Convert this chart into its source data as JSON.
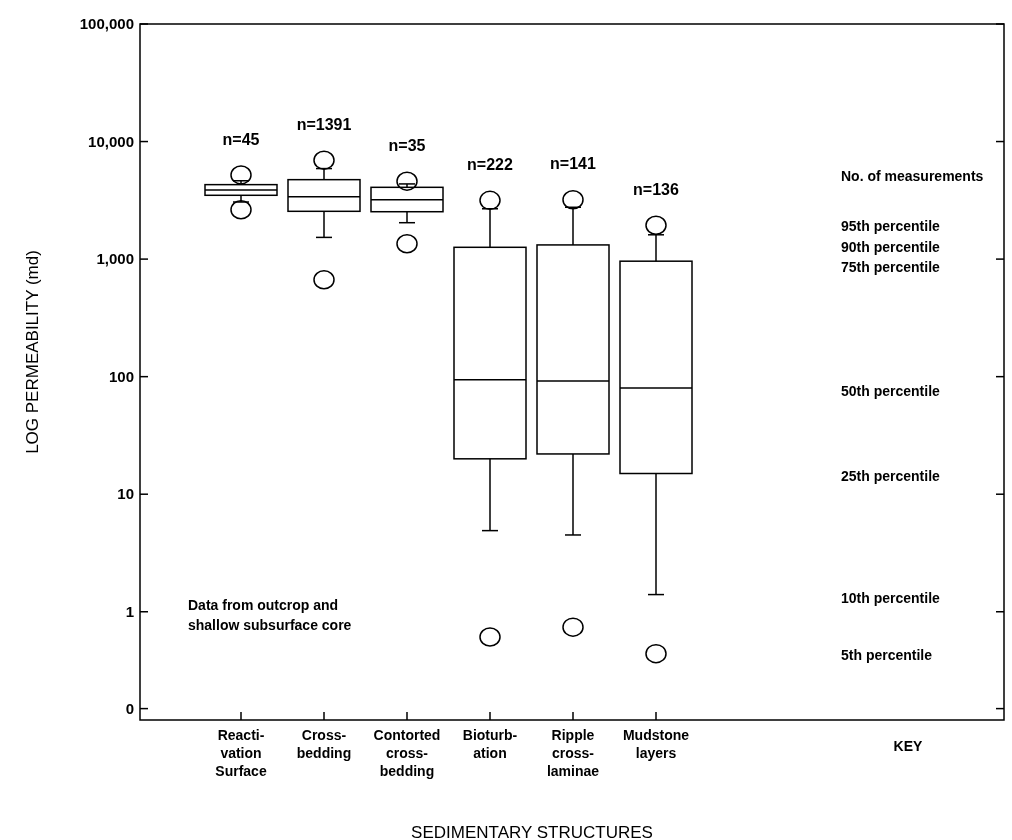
{
  "chart_data": {
    "type": "box",
    "xlabel": "SEDIMENTARY STRUCTURES",
    "ylabel": "LOG PERMEABILITY (md)",
    "categories": [
      "Reacti-\nvation\nSurface",
      "Cross-\nbedding",
      "Contorted\ncross-\nbedding",
      "Bioturb-\nation",
      "Ripple\ncross-\nlaminae",
      "Mudstone\nlayers"
    ],
    "boxes": [
      {
        "low": 3060,
        "q1": 3490,
        "median": 3870,
        "q3": 4300,
        "high": 4640,
        "outliers": [
          2630,
          5200
        ]
      },
      {
        "low": 1530,
        "q1": 2550,
        "median": 3400,
        "q3": 4740,
        "high": 5890,
        "outliers": [
          667,
          6940
        ]
      },
      {
        "low": 2040,
        "q1": 2530,
        "median": 3200,
        "q3": 4080,
        "high": 4360,
        "outliers": [
          1350,
          4600
        ]
      },
      {
        "low": 4.9,
        "q1": 20,
        "median": 94,
        "q3": 1260,
        "high": 2680,
        "outliers": [
          0.61,
          3160
        ]
      },
      {
        "low": 4.5,
        "q1": 22,
        "median": 92,
        "q3": 1320,
        "high": 2760,
        "outliers": [
          0.74,
          3200
        ]
      },
      {
        "low": 1.4,
        "q1": 15,
        "median": 80,
        "q3": 960,
        "high": 1610,
        "outliers": [
          0.44,
          1940
        ]
      }
    ],
    "log": "y",
    "ylim": [
      0.12,
      100000
    ],
    "yticks": [
      {
        "value": 0.15,
        "label": "0"
      },
      {
        "value": 1,
        "label": "1"
      },
      {
        "value": 10,
        "label": "10"
      },
      {
        "value": 100,
        "label": "100"
      },
      {
        "value": 1000,
        "label": "1,000"
      },
      {
        "value": 10000,
        "label": "10,000"
      },
      {
        "value": 100000,
        "label": "100,000"
      }
    ],
    "annotations": [
      "n=45",
      "n=1391",
      "n=35",
      "n=222",
      "n=141",
      "n=136",
      "No. of measurements",
      "95th percentile",
      "90th percentile",
      "75th percentile",
      "50th percentile",
      "25th percentile",
      "10th percentile",
      "5th percentile",
      "KEY",
      "Data from outcrop and\nshallow subsurface core"
    ]
  }
}
